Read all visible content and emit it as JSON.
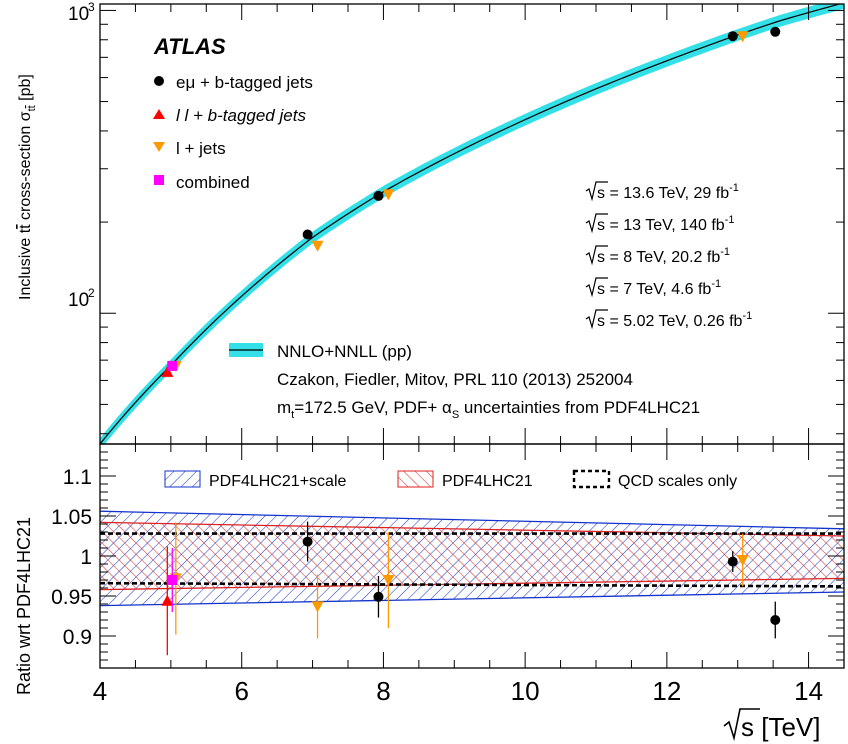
{
  "chart_data": [
    {
      "type": "scatter",
      "experiment": "ATLAS",
      "ylabel_main": "Inclusive t",
      "ylabel_bar": "t",
      "ylabel_rest": " cross-section  σ",
      "ylabel_sub": "t",
      "ylabel_sub_bar": "t",
      "ylabel_unit": " [pb]",
      "yscale": "log",
      "ylim": [
        37,
        1050
      ],
      "xlim": [
        4,
        14.5
      ],
      "ytick_labels": [
        {
          "value": 100,
          "base": "10",
          "exp": "2"
        },
        {
          "value": 1000,
          "base": "10",
          "exp": "3"
        }
      ],
      "legend": [
        {
          "symbol": "circle",
          "color": "#000000",
          "pre": "e",
          "greek": "μ",
          "post": " + b-tagged jets"
        },
        {
          "symbol": "triangle-up",
          "color": "#ff0000",
          "pre": "",
          "greek": "",
          "post": "l l + b-tagged jets"
        },
        {
          "symbol": "triangle-down",
          "color": "#ff9900",
          "pre": "",
          "greek": "",
          "post": "l + jets"
        },
        {
          "symbol": "square",
          "color": "#ff00ff",
          "pre": "",
          "greek": "",
          "post": "combined"
        }
      ],
      "lumi_labels": [
        {
          "sqrt": "s",
          "text": " = 13.6 TeV, 29 fb",
          "exp": "-1"
        },
        {
          "sqrt": "s",
          "text": " = 13 TeV, 140 fb",
          "exp": "-1"
        },
        {
          "sqrt": "s",
          "text": " = 8 TeV, 20.2 fb",
          "exp": "-1"
        },
        {
          "sqrt": "s",
          "text": " = 7 TeV, 4.6 fb",
          "exp": "-1"
        },
        {
          "sqrt": "s",
          "text": " = 5.02 TeV, 0.26 fb",
          "exp": "-1"
        }
      ],
      "theory": {
        "label": "NNLO+NNLL (pp)",
        "ref": "Czakon, Fiedler, Mitov, PRL 110 (2013) 252004",
        "mass_pre": "m",
        "mass_sub": "t",
        "mass_post": "=172.5 GeV, PDF+ α",
        "alpha_sub": "S",
        "mass_tail": " uncertainties from PDF4LHC21",
        "band_color": "#33e0e8",
        "line_color": "#000000",
        "curve": [
          [
            4,
            37
          ],
          [
            5.02,
            68
          ],
          [
            7,
            178
          ],
          [
            8,
            252
          ],
          [
            13,
            830
          ],
          [
            13.6,
            925
          ],
          [
            14.5,
            1060
          ]
        ],
        "band_frac": 0.045
      },
      "series": [
        {
          "name": "eμ + b-tagged jets",
          "color": "#000000",
          "marker": "circle",
          "points": [
            [
              6.93,
              182
            ],
            [
              7.93,
              244
            ],
            [
              12.93,
              822
            ],
            [
              13.53,
              850
            ]
          ]
        },
        {
          "name": "l l + b-tagged jets",
          "color": "#ff0000",
          "marker": "triangle-up",
          "points": [
            [
              4.95,
              64
            ]
          ]
        },
        {
          "name": "l + jets",
          "color": "#ff9900",
          "marker": "triangle-down",
          "points": [
            [
              5.07,
              67
            ],
            [
              7.07,
              167
            ],
            [
              8.07,
              247
            ],
            [
              13.07,
              822
            ]
          ]
        },
        {
          "name": "combined",
          "color": "#ff00ff",
          "marker": "square",
          "points": [
            [
              5.02,
              67
            ]
          ]
        }
      ]
    },
    {
      "type": "scatter",
      "ylabel": "Ratio wrt PDF4LHC21",
      "xlabel_sqrt": "s",
      "xlabel_rest": " [TeV]",
      "xlim": [
        4,
        14.5
      ],
      "ylim": [
        0.86,
        1.14
      ],
      "xticks": [
        4,
        6,
        8,
        10,
        12,
        14
      ],
      "yticks": [
        0.9,
        0.95,
        1,
        1.05,
        1.1
      ],
      "ytick_labels": [
        "0.9",
        "0.95",
        "1",
        "1.05",
        "1.1"
      ],
      "legend": [
        {
          "label": "PDF4LHC21+scale",
          "style": "hatch-blue"
        },
        {
          "label": "PDF4LHC21",
          "style": "hatch-red"
        },
        {
          "label": "QCD scales only",
          "style": "dashed-black"
        }
      ],
      "bands": {
        "pdf_scale": {
          "x": [
            4,
            14.5
          ],
          "lo": [
            0.938,
            0.955
          ],
          "hi": [
            1.056,
            1.034
          ],
          "color": "#1133cc"
        },
        "pdf": {
          "x": [
            4,
            14.5
          ],
          "lo": [
            0.958,
            0.972
          ],
          "hi": [
            1.042,
            1.025
          ],
          "color": "#dd2222"
        },
        "qcd": {
          "x": [
            4,
            14.5
          ],
          "lo": [
            0.966,
            0.962
          ],
          "hi": [
            1.028,
            1.028
          ],
          "color": "#000000"
        }
      },
      "series": [
        {
          "name": "eμ + b-tagged jets",
          "color": "#000000",
          "marker": "circle",
          "points": [
            [
              6.93,
              1.018,
              0.025
            ],
            [
              7.93,
              0.949,
              0.026
            ],
            [
              12.93,
              0.993,
              0.013
            ],
            [
              13.53,
              0.92,
              0.023
            ]
          ]
        },
        {
          "name": "l l + b-tagged jets",
          "color": "#ff0000",
          "marker": "triangle-up",
          "points": [
            [
              4.95,
              0.944,
              0.068
            ]
          ]
        },
        {
          "name": "l + jets",
          "color": "#ff9900",
          "marker": "triangle-down",
          "points": [
            [
              5.07,
              0.972,
              0.07
            ],
            [
              7.07,
              0.937,
              0.04
            ],
            [
              8.07,
              0.97,
              0.06
            ],
            [
              13.07,
              0.995,
              0.033
            ]
          ]
        },
        {
          "name": "combined",
          "color": "#ff00ff",
          "marker": "square",
          "points": [
            [
              5.02,
              0.97,
              0.04
            ]
          ]
        }
      ]
    }
  ]
}
